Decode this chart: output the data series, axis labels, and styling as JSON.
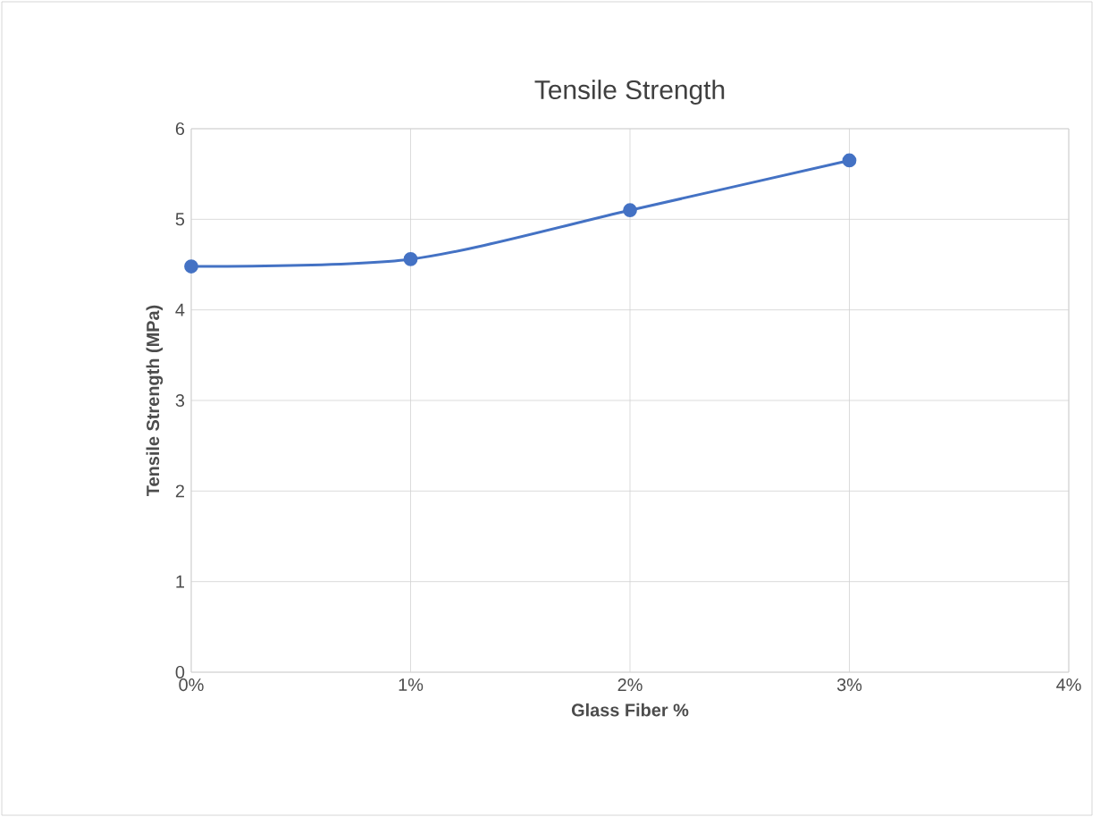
{
  "chart_data": {
    "type": "line",
    "title": "Tensile Strength",
    "xlabel": "Glass Fiber %",
    "ylabel": "Tensile Strength (MPa)",
    "x": [
      0,
      1,
      2,
      3
    ],
    "series": [
      {
        "color": "#4472c4",
        "values": [
          4.48,
          4.56,
          5.1,
          5.65
        ]
      }
    ],
    "xlim": [
      0,
      4
    ],
    "xticks": [
      {
        "value": 0,
        "label": "0%"
      },
      {
        "value": 1,
        "label": "1%"
      },
      {
        "value": 2,
        "label": "2%"
      },
      {
        "value": 3,
        "label": "3%"
      },
      {
        "value": 4,
        "label": "4%"
      }
    ],
    "ylim": [
      0,
      6
    ],
    "yticks": [
      0,
      1,
      2,
      3,
      4,
      5,
      6
    ],
    "grid": true,
    "marker": "circle",
    "line_style": "solid"
  }
}
